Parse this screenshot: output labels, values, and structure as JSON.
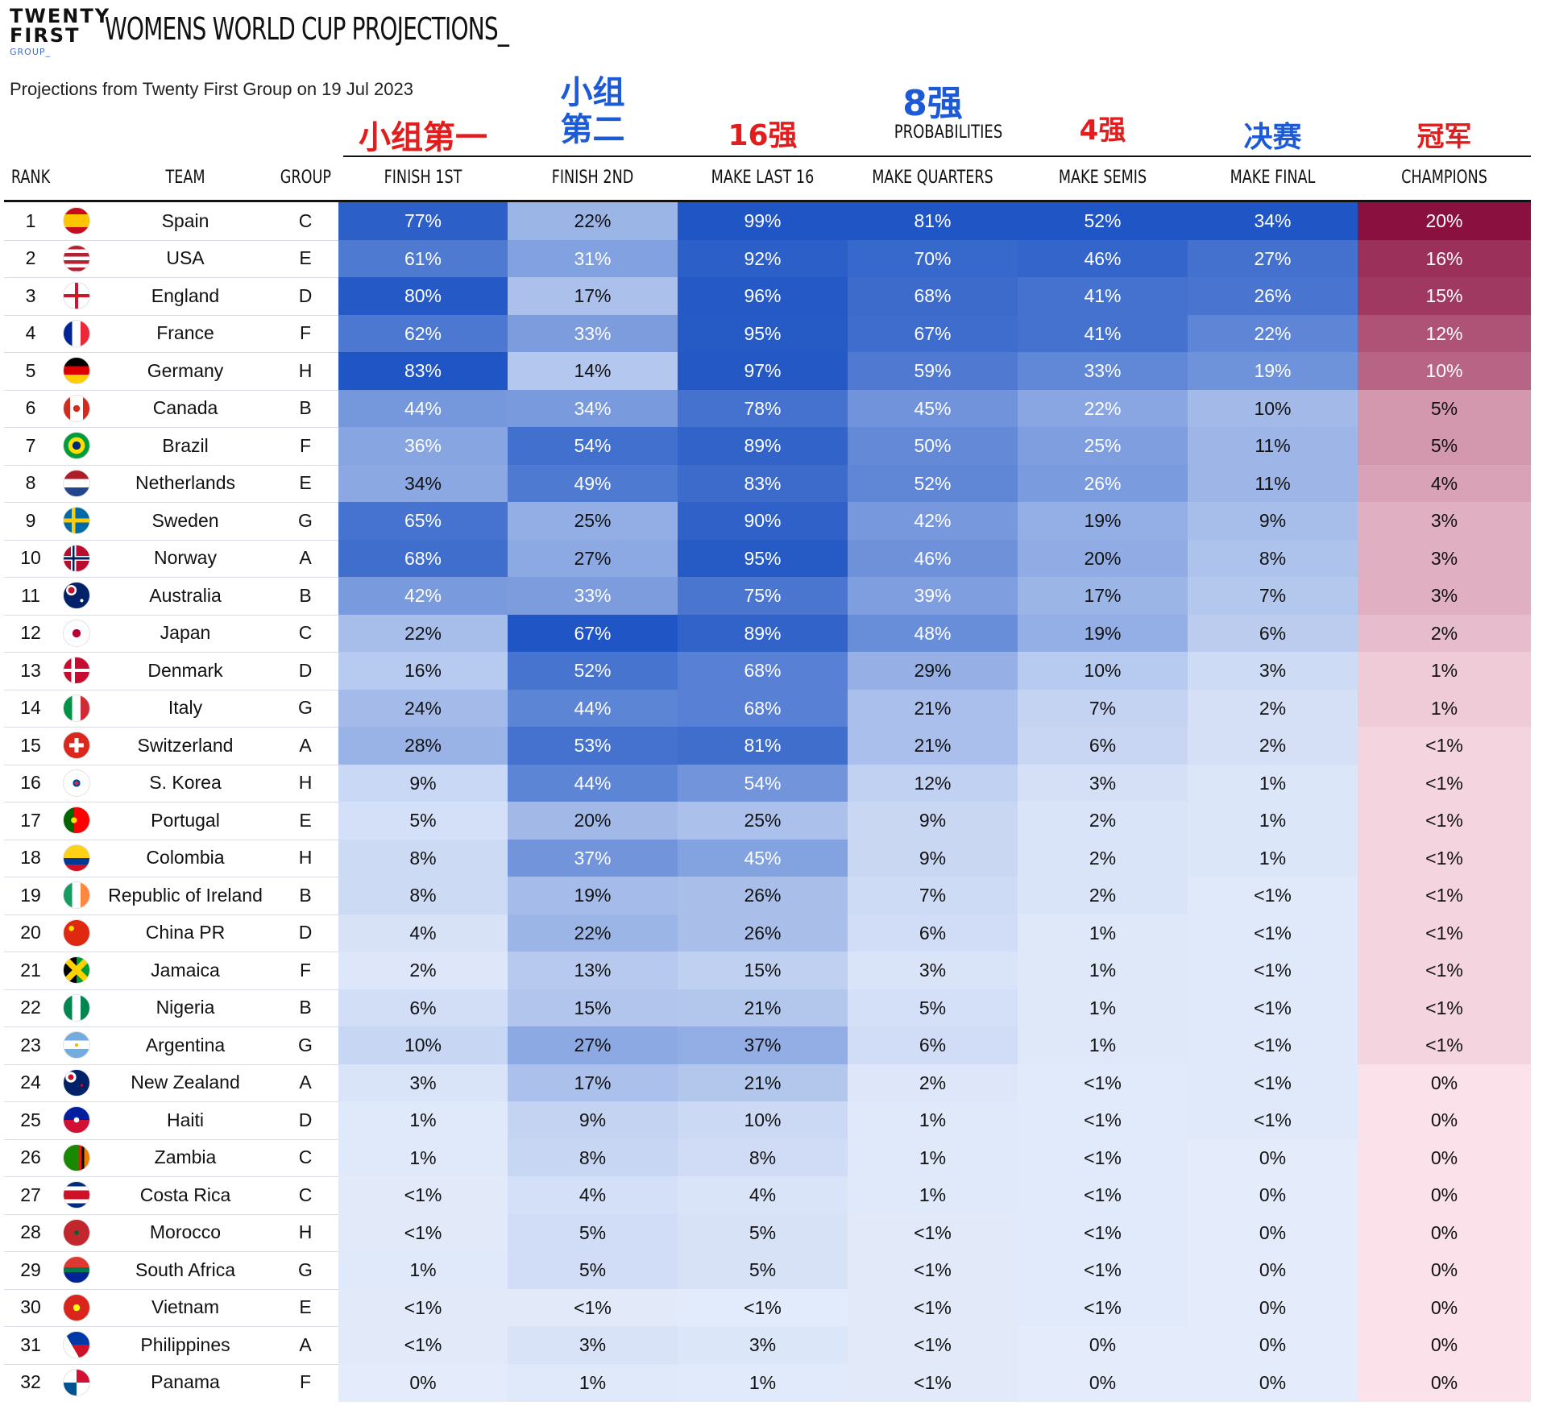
{
  "header": {
    "logo_lines": [
      "TWENTY",
      "FIRST",
      "GROUP_"
    ],
    "title": "WOMENS WORLD CUP PROJECTIONS_",
    "subtitle": "Projections from Twenty First Group on 19 Jul 2023",
    "probabilities_label": "PROBABILITIES"
  },
  "annotations": [
    {
      "text": "小组第一",
      "color": "#e21d1d",
      "column": "finish_1st"
    },
    {
      "text": "小组\n第二",
      "color": "#1d5bd6",
      "column": "finish_2nd"
    },
    {
      "text": "16强",
      "color": "#e21d1d",
      "column": "make_last16"
    },
    {
      "text": "8强",
      "color": "#1d5bd6",
      "column": "make_quarters"
    },
    {
      "text": "4强",
      "color": "#e21d1d",
      "column": "make_semis"
    },
    {
      "text": "决赛",
      "color": "#1d5bd6",
      "column": "make_final"
    },
    {
      "text": "冠军",
      "color": "#e21d1d",
      "column": "champions"
    }
  ],
  "colors": {
    "blue_scale": [
      "#e4ecfb",
      "#1f55c4"
    ],
    "champions_scale": [
      "#fbe1ea",
      "#8a1040"
    ],
    "text_light": "#ffffff",
    "text_dark": "#111111"
  },
  "chart_data": {
    "type": "table",
    "title": "WOMENS WORLD CUP PROJECTIONS_",
    "columns": [
      "RANK",
      "TEAM",
      "GROUP",
      "FINISH 1ST",
      "FINISH 2ND",
      "MAKE LAST 16",
      "MAKE QUARTERS",
      "MAKE SEMIS",
      "MAKE FINAL",
      "CHAMPIONS"
    ],
    "rows": [
      {
        "rank": "1",
        "team": "Spain",
        "flag": "spain-flag-icon",
        "group": "C",
        "values": [
          "77%",
          "22%",
          "99%",
          "81%",
          "52%",
          "34%",
          "20%"
        ]
      },
      {
        "rank": "2",
        "team": "USA",
        "flag": "usa-flag-icon",
        "group": "E",
        "values": [
          "61%",
          "31%",
          "92%",
          "70%",
          "46%",
          "27%",
          "16%"
        ]
      },
      {
        "rank": "3",
        "team": "England",
        "flag": "england-flag-icon",
        "group": "D",
        "values": [
          "80%",
          "17%",
          "96%",
          "68%",
          "41%",
          "26%",
          "15%"
        ]
      },
      {
        "rank": "4",
        "team": "France",
        "flag": "france-flag-icon",
        "group": "F",
        "values": [
          "62%",
          "33%",
          "95%",
          "67%",
          "41%",
          "22%",
          "12%"
        ]
      },
      {
        "rank": "5",
        "team": "Germany",
        "flag": "germany-flag-icon",
        "group": "H",
        "values": [
          "83%",
          "14%",
          "97%",
          "59%",
          "33%",
          "19%",
          "10%"
        ]
      },
      {
        "rank": "6",
        "team": "Canada",
        "flag": "canada-flag-icon",
        "group": "B",
        "values": [
          "44%",
          "34%",
          "78%",
          "45%",
          "22%",
          "10%",
          "5%"
        ]
      },
      {
        "rank": "7",
        "team": "Brazil",
        "flag": "brazil-flag-icon",
        "group": "F",
        "values": [
          "36%",
          "54%",
          "89%",
          "50%",
          "25%",
          "11%",
          "5%"
        ]
      },
      {
        "rank": "8",
        "team": "Netherlands",
        "flag": "netherlands-flag-icon",
        "group": "E",
        "values": [
          "34%",
          "49%",
          "83%",
          "52%",
          "26%",
          "11%",
          "4%"
        ]
      },
      {
        "rank": "9",
        "team": "Sweden",
        "flag": "sweden-flag-icon",
        "group": "G",
        "values": [
          "65%",
          "25%",
          "90%",
          "42%",
          "19%",
          "9%",
          "3%"
        ]
      },
      {
        "rank": "10",
        "team": "Norway",
        "flag": "norway-flag-icon",
        "group": "A",
        "values": [
          "68%",
          "27%",
          "95%",
          "46%",
          "20%",
          "8%",
          "3%"
        ]
      },
      {
        "rank": "11",
        "team": "Australia",
        "flag": "australia-flag-icon",
        "group": "B",
        "values": [
          "42%",
          "33%",
          "75%",
          "39%",
          "17%",
          "7%",
          "3%"
        ]
      },
      {
        "rank": "12",
        "team": "Japan",
        "flag": "japan-flag-icon",
        "group": "C",
        "values": [
          "22%",
          "67%",
          "89%",
          "48%",
          "19%",
          "6%",
          "2%"
        ]
      },
      {
        "rank": "13",
        "team": "Denmark",
        "flag": "denmark-flag-icon",
        "group": "D",
        "values": [
          "16%",
          "52%",
          "68%",
          "29%",
          "10%",
          "3%",
          "1%"
        ]
      },
      {
        "rank": "14",
        "team": "Italy",
        "flag": "italy-flag-icon",
        "group": "G",
        "values": [
          "24%",
          "44%",
          "68%",
          "21%",
          "7%",
          "2%",
          "1%"
        ]
      },
      {
        "rank": "15",
        "team": "Switzerland",
        "flag": "switzerland-flag-icon",
        "group": "A",
        "values": [
          "28%",
          "53%",
          "81%",
          "21%",
          "6%",
          "2%",
          "<1%"
        ]
      },
      {
        "rank": "16",
        "team": "S. Korea",
        "flag": "south-korea-flag-icon",
        "group": "H",
        "values": [
          "9%",
          "44%",
          "54%",
          "12%",
          "3%",
          "1%",
          "<1%"
        ]
      },
      {
        "rank": "17",
        "team": "Portugal",
        "flag": "portugal-flag-icon",
        "group": "E",
        "values": [
          "5%",
          "20%",
          "25%",
          "9%",
          "2%",
          "1%",
          "<1%"
        ]
      },
      {
        "rank": "18",
        "team": "Colombia",
        "flag": "colombia-flag-icon",
        "group": "H",
        "values": [
          "8%",
          "37%",
          "45%",
          "9%",
          "2%",
          "1%",
          "<1%"
        ]
      },
      {
        "rank": "19",
        "team": "Republic of Ireland",
        "flag": "ireland-flag-icon",
        "group": "B",
        "values": [
          "8%",
          "19%",
          "26%",
          "7%",
          "2%",
          "<1%",
          "<1%"
        ]
      },
      {
        "rank": "20",
        "team": "China PR",
        "flag": "china-flag-icon",
        "group": "D",
        "values": [
          "4%",
          "22%",
          "26%",
          "6%",
          "1%",
          "<1%",
          "<1%"
        ]
      },
      {
        "rank": "21",
        "team": "Jamaica",
        "flag": "jamaica-flag-icon",
        "group": "F",
        "values": [
          "2%",
          "13%",
          "15%",
          "3%",
          "1%",
          "<1%",
          "<1%"
        ]
      },
      {
        "rank": "22",
        "team": "Nigeria",
        "flag": "nigeria-flag-icon",
        "group": "B",
        "values": [
          "6%",
          "15%",
          "21%",
          "5%",
          "1%",
          "<1%",
          "<1%"
        ]
      },
      {
        "rank": "23",
        "team": "Argentina",
        "flag": "argentina-flag-icon",
        "group": "G",
        "values": [
          "10%",
          "27%",
          "37%",
          "6%",
          "1%",
          "<1%",
          "<1%"
        ]
      },
      {
        "rank": "24",
        "team": "New Zealand",
        "flag": "new-zealand-flag-icon",
        "group": "A",
        "values": [
          "3%",
          "17%",
          "21%",
          "2%",
          "<1%",
          "<1%",
          "0%"
        ]
      },
      {
        "rank": "25",
        "team": "Haiti",
        "flag": "haiti-flag-icon",
        "group": "D",
        "values": [
          "1%",
          "9%",
          "10%",
          "1%",
          "<1%",
          "<1%",
          "0%"
        ]
      },
      {
        "rank": "26",
        "team": "Zambia",
        "flag": "zambia-flag-icon",
        "group": "C",
        "values": [
          "1%",
          "8%",
          "8%",
          "1%",
          "<1%",
          "0%",
          "0%"
        ]
      },
      {
        "rank": "27",
        "team": "Costa Rica",
        "flag": "costa-rica-flag-icon",
        "group": "C",
        "values": [
          "<1%",
          "4%",
          "4%",
          "1%",
          "<1%",
          "0%",
          "0%"
        ]
      },
      {
        "rank": "28",
        "team": "Morocco",
        "flag": "morocco-flag-icon",
        "group": "H",
        "values": [
          "<1%",
          "5%",
          "5%",
          "<1%",
          "<1%",
          "0%",
          "0%"
        ]
      },
      {
        "rank": "29",
        "team": "South Africa",
        "flag": "south-africa-flag-icon",
        "group": "G",
        "values": [
          "1%",
          "5%",
          "5%",
          "<1%",
          "<1%",
          "0%",
          "0%"
        ]
      },
      {
        "rank": "30",
        "team": "Vietnam",
        "flag": "vietnam-flag-icon",
        "group": "E",
        "values": [
          "<1%",
          "<1%",
          "<1%",
          "<1%",
          "<1%",
          "0%",
          "0%"
        ]
      },
      {
        "rank": "31",
        "team": "Philippines",
        "flag": "philippines-flag-icon",
        "group": "A",
        "values": [
          "<1%",
          "3%",
          "3%",
          "<1%",
          "0%",
          "0%",
          "0%"
        ]
      },
      {
        "rank": "32",
        "team": "Panama",
        "flag": "panama-flag-icon",
        "group": "F",
        "values": [
          "0%",
          "1%",
          "1%",
          "<1%",
          "0%",
          "0%",
          "0%"
        ]
      }
    ]
  }
}
